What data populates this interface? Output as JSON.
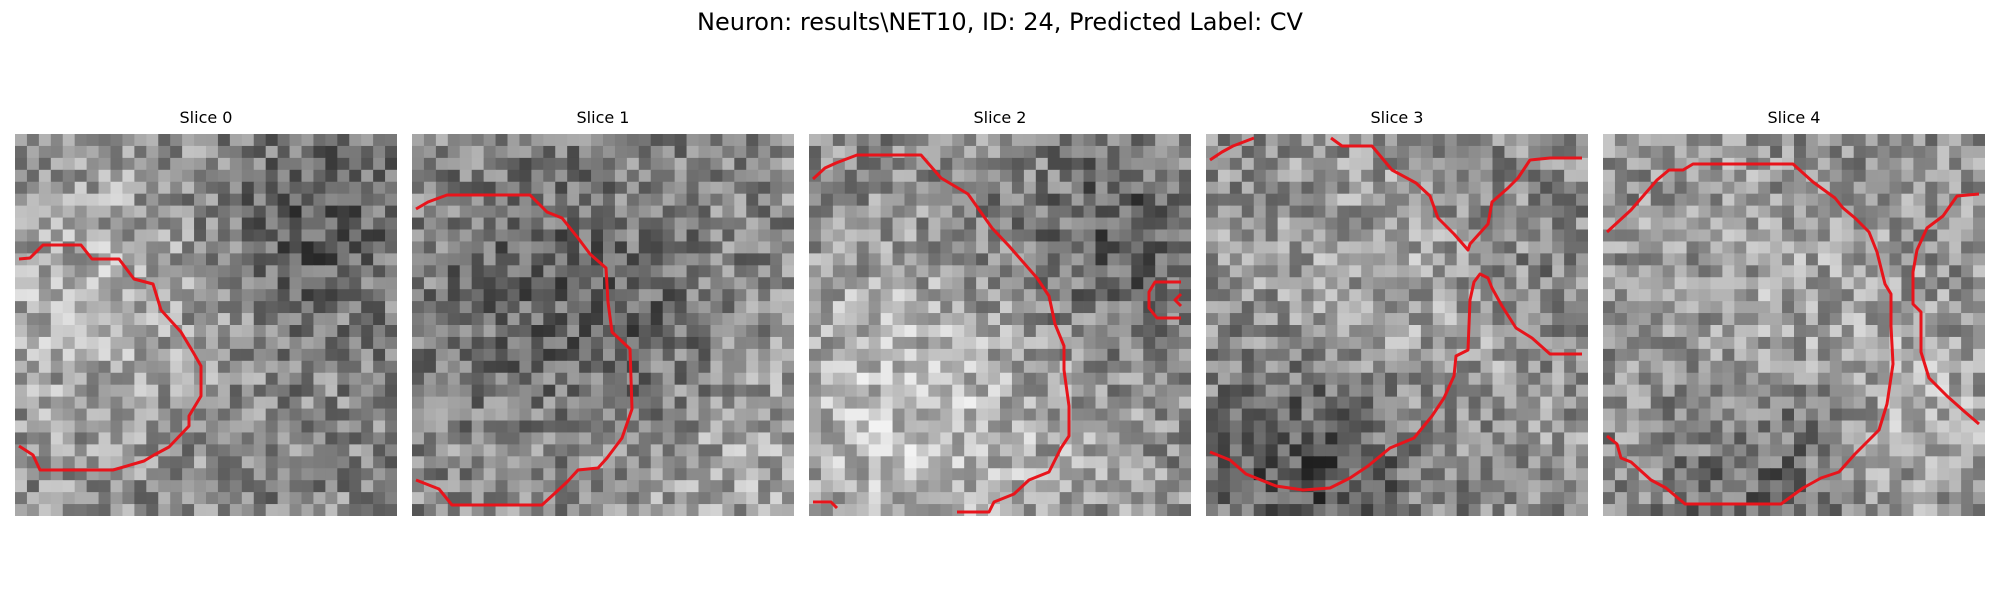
{
  "figure": {
    "title": "Neuron: results\\NET10, ID: 24, Predicted Label: CV",
    "contour_color": "#e8141b"
  },
  "slices": [
    {
      "label": "Slice 0"
    },
    {
      "label": "Slice 1"
    },
    {
      "label": "Slice 2"
    },
    {
      "label": "Slice 3"
    },
    {
      "label": "Slice 4"
    }
  ]
}
